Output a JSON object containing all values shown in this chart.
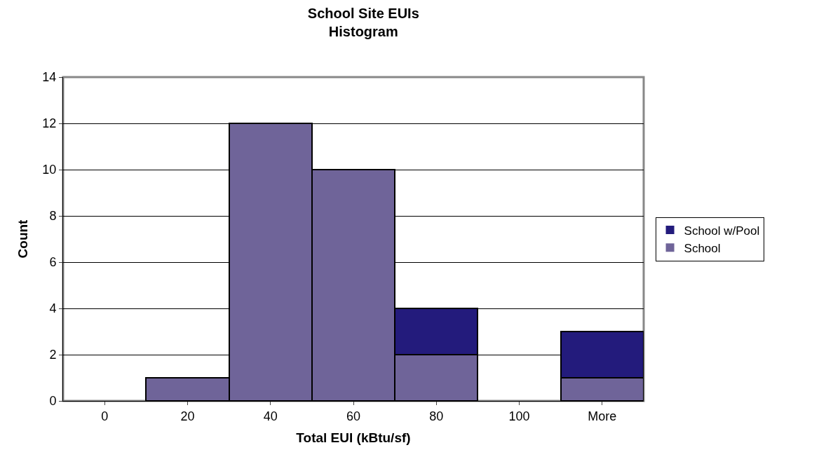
{
  "chart_data": {
    "type": "bar",
    "title": "School Site EUIs\nHistogram",
    "xlabel": "Total EUI (kBtu/sf)",
    "ylabel": "Count",
    "categories": [
      "0",
      "20",
      "40",
      "60",
      "80",
      "100",
      "More"
    ],
    "series": [
      {
        "name": "School",
        "color": "#6f6499",
        "values": [
          0,
          1,
          12,
          10,
          2,
          0,
          1
        ]
      },
      {
        "name": "School w/Pool",
        "color": "#231b7c",
        "values": [
          0,
          0,
          0,
          0,
          2,
          0,
          2
        ]
      }
    ],
    "stacked": true,
    "ylim": [
      0,
      14
    ],
    "yticks": [
      0,
      2,
      4,
      6,
      8,
      10,
      12,
      14
    ],
    "grid": "y",
    "legend": "right"
  }
}
